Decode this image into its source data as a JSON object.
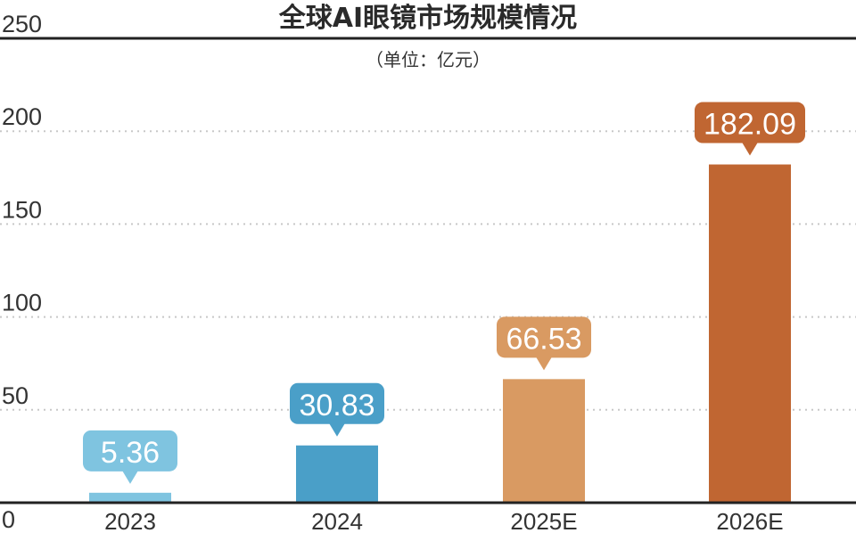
{
  "chart_data": {
    "type": "bar",
    "title": "全球AI眼镜市场规模情况",
    "subtitle": "（单位：亿元）",
    "categories": [
      "2023",
      "2024",
      "2025E",
      "2026E"
    ],
    "values": [
      5.36,
      30.83,
      66.53,
      182.09
    ],
    "data_labels": [
      "5.36",
      "30.83",
      "66.53",
      "182.09"
    ],
    "yticks": [
      "0",
      "50",
      "100",
      "150",
      "200",
      "250"
    ],
    "ylim": [
      0,
      250
    ],
    "grid": "dotted horizontal",
    "colors": {
      "bars": [
        "#7fc4e0",
        "#4a9fc8",
        "#d99a62",
        "#c06632"
      ],
      "labels": [
        "#7fc4e0",
        "#4a9fc8",
        "#d99a62",
        "#c06632"
      ],
      "axis": "#222222",
      "grid": "#c8c8c8"
    }
  }
}
